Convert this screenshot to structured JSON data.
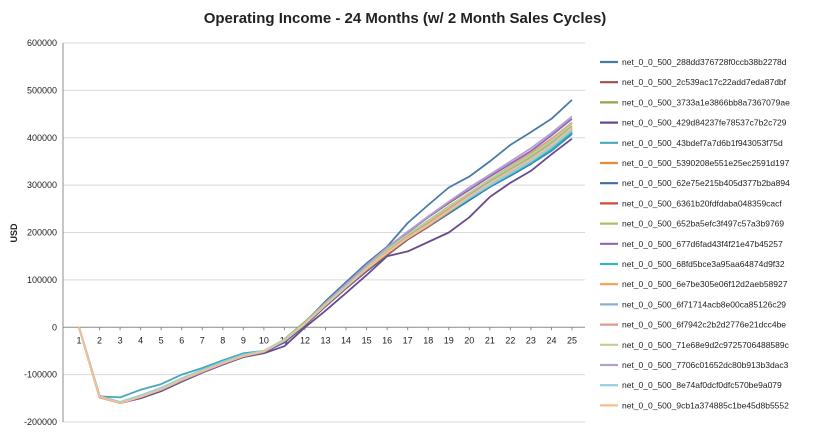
{
  "chart_data": {
    "type": "line",
    "title": "Operating Income - 24 Months (w/ 2 Month Sales Cycles)",
    "xlabel": "",
    "ylabel": "USD",
    "ylim": [
      -200000,
      600000
    ],
    "y_ticks": [
      600000,
      500000,
      400000,
      300000,
      200000,
      100000,
      0,
      -100000,
      -200000
    ],
    "y_tick_labels": [
      "600000",
      "500000",
      "400000",
      "300000",
      "200000",
      "100000",
      "0",
      "-100000",
      "-200000"
    ],
    "categories": [
      "1",
      "2",
      "3",
      "4",
      "5",
      "6",
      "7",
      "8",
      "9",
      "10",
      "11",
      "12",
      "13",
      "14",
      "15",
      "16",
      "17",
      "18",
      "19",
      "20",
      "21",
      "22",
      "23",
      "24",
      "25"
    ],
    "grid": true,
    "legend_position": "right",
    "series": [
      {
        "name": "net_0_0_500_288dd376728f0ccb38b2278d",
        "color": "#4a7ba6",
        "values": [
          0,
          -145000,
          -158000,
          -145000,
          -130000,
          -112000,
          -95000,
          -78000,
          -62000,
          -52000,
          -30000,
          10000,
          55000,
          95000,
          135000,
          170000,
          220000,
          258000,
          295000,
          318000,
          350000,
          385000,
          412000,
          440000,
          480000
        ]
      },
      {
        "name": "net_0_0_500_2c539ac17c22add7eda87dbf",
        "color": "#a64a4a",
        "values": [
          0,
          -148000,
          -160000,
          -148000,
          -132000,
          -112000,
          -94000,
          -76000,
          -62000,
          -50000,
          -28000,
          5000,
          45000,
          85000,
          122000,
          155000,
          188000,
          215000,
          245000,
          275000,
          300000,
          322000,
          345000,
          380000,
          415000
        ]
      },
      {
        "name": "net_0_0_500_3733a1e3866bb8a7367079ae",
        "color": "#8ca64a",
        "values": [
          0,
          -146000,
          -159000,
          -147000,
          -130000,
          -110000,
          -92000,
          -75000,
          -60000,
          -52000,
          -25000,
          12000,
          52000,
          90000,
          128000,
          162000,
          195000,
          225000,
          255000,
          283000,
          310000,
          335000,
          362000,
          395000,
          432000
        ]
      },
      {
        "name": "net_0_0_500_429d84237fe78537c7b2c729",
        "color": "#6a4a8c",
        "values": [
          0,
          -145000,
          -160000,
          -150000,
          -135000,
          -115000,
          -96000,
          -79000,
          -63000,
          -55000,
          -40000,
          0,
          35000,
          72000,
          110000,
          150000,
          160000,
          180000,
          200000,
          232000,
          275000,
          305000,
          330000,
          365000,
          398000
        ]
      },
      {
        "name": "net_0_0_500_43bdef7a7d6b1f943053f75d",
        "color": "#4aa6b8",
        "values": [
          0,
          -146000,
          -148000,
          -132000,
          -120000,
          -100000,
          -86000,
          -70000,
          -55000,
          -50000,
          -30000,
          6000,
          48000,
          88000,
          125000,
          158000,
          190000,
          215000,
          242000,
          270000,
          298000,
          320000,
          345000,
          372000,
          408000
        ]
      },
      {
        "name": "net_0_0_500_5390208e551e25ec2591d197",
        "color": "#e88a3a",
        "values": [
          0,
          -147000,
          -160000,
          -146000,
          -131000,
          -111000,
          -93000,
          -76000,
          -61000,
          -51000,
          -27000,
          8000,
          50000,
          88000,
          126000,
          160000,
          192000,
          218000,
          248000,
          276000,
          304000,
          330000,
          355000,
          385000,
          420000
        ]
      },
      {
        "name": "net_0_0_500_62e75e215b405d377b2ba894",
        "color": "#3a6ea6",
        "values": [
          0,
          -146000,
          -160000,
          -148000,
          -133000,
          -113000,
          -95000,
          -78000,
          -63000,
          -53000,
          -32000,
          4000,
          44000,
          82000,
          118000,
          152000,
          185000,
          212000,
          240000,
          268000,
          296000,
          320000,
          345000,
          375000,
          410000
        ]
      },
      {
        "name": "net_0_0_500_6361b20fdfdaba048359cacf",
        "color": "#d04a3a",
        "values": [
          0,
          -147000,
          -159000,
          -147000,
          -132000,
          -112000,
          -94000,
          -77000,
          -62000,
          -52000,
          -28000,
          6000,
          46000,
          84000,
          121000,
          154000,
          186000,
          212000,
          242000,
          272000,
          300000,
          325000,
          350000,
          380000,
          418000
        ]
      },
      {
        "name": "net_0_0_500_652ba5efc3f497c57a3b9769",
        "color": "#a6c46a",
        "values": [
          0,
          -146000,
          -158000,
          -145000,
          -129000,
          -109000,
          -91000,
          -74000,
          -59000,
          -51000,
          -26000,
          10000,
          50000,
          89000,
          127000,
          162000,
          195000,
          222000,
          252000,
          282000,
          310000,
          335000,
          360000,
          390000,
          425000
        ]
      },
      {
        "name": "net_0_0_500_677d6fad43f4f21e47b45257",
        "color": "#8a6ab4",
        "values": [
          0,
          -145000,
          -159000,
          -147000,
          -132000,
          -112000,
          -94000,
          -77000,
          -61000,
          -52000,
          -29000,
          8000,
          50000,
          90000,
          130000,
          168000,
          200000,
          232000,
          262000,
          290000,
          318000,
          345000,
          372000,
          405000,
          440000
        ]
      },
      {
        "name": "net_0_0_500_68fd5bce3a95aa64874d9f32",
        "color": "#3ab4c8",
        "values": [
          0,
          -146000,
          -158000,
          -144000,
          -128000,
          -108000,
          -90000,
          -73000,
          -58000,
          -50000,
          -27000,
          8000,
          48000,
          86000,
          123000,
          156000,
          188000,
          214000,
          243000,
          271000,
          298000,
          322000,
          347000,
          376000,
          412000
        ]
      },
      {
        "name": "net_0_0_500_6e7be305e06f12d2aeb58927",
        "color": "#f0a050",
        "values": [
          0,
          -147000,
          -160000,
          -147000,
          -131000,
          -111000,
          -93000,
          -76000,
          -61000,
          -51000,
          -28000,
          7000,
          47000,
          85000,
          122000,
          156000,
          188000,
          215000,
          245000,
          275000,
          302000,
          328000,
          352000,
          382000,
          418000
        ]
      },
      {
        "name": "net_0_0_500_6f71714acb8e00ca85126c29",
        "color": "#8aaed0",
        "values": [
          0,
          -146000,
          -159000,
          -146000,
          -130000,
          -110000,
          -92000,
          -75000,
          -60000,
          -51000,
          -27000,
          9000,
          49000,
          87000,
          125000,
          159000,
          192000,
          219000,
          249000,
          279000,
          306000,
          332000,
          357000,
          387000,
          422000
        ]
      },
      {
        "name": "net_0_0_500_6f7942c2b2d2776e21dcc4be",
        "color": "#e09a90",
        "values": [
          0,
          -147000,
          -160000,
          -147000,
          -132000,
          -112000,
          -94000,
          -77000,
          -61000,
          -52000,
          -28000,
          7000,
          48000,
          86000,
          124000,
          158000,
          190000,
          218000,
          250000,
          282000,
          312000,
          340000,
          368000,
          398000,
          432000
        ]
      },
      {
        "name": "net_0_0_500_71e68e9d2c9725706488589c",
        "color": "#bcd08a",
        "values": [
          0,
          -146000,
          -158000,
          -145000,
          -129000,
          -109000,
          -91000,
          -74000,
          -59000,
          -50000,
          -26000,
          10000,
          51000,
          90000,
          128000,
          163000,
          196000,
          224000,
          254000,
          284000,
          312000,
          338000,
          364000,
          394000,
          430000
        ]
      },
      {
        "name": "net_0_0_500_7706c01652dc80b913b3dac3",
        "color": "#b4a0d0",
        "values": [
          0,
          -145000,
          -159000,
          -147000,
          -131000,
          -111000,
          -93000,
          -76000,
          -61000,
          -51000,
          -28000,
          9000,
          51000,
          91000,
          131000,
          168000,
          202000,
          234000,
          265000,
          295000,
          322000,
          350000,
          378000,
          410000,
          445000
        ]
      },
      {
        "name": "net_0_0_500_8e74af0dcf0dfc570be9a079",
        "color": "#90d0e0",
        "values": [
          0,
          -146000,
          -158000,
          -144000,
          -128000,
          -108000,
          -90000,
          -73000,
          -58000,
          -50000,
          -26000,
          9000,
          49000,
          87000,
          124000,
          157000,
          189000,
          216000,
          245000,
          273000,
          300000,
          325000,
          350000,
          380000,
          416000
        ]
      },
      {
        "name": "net_0_0_500_9cb1a374885c1be45d8b5552",
        "color": "#f4c090",
        "values": [
          0,
          -147000,
          -160000,
          -147000,
          -131000,
          -111000,
          -93000,
          -76000,
          -61000,
          -51000,
          -28000,
          7000,
          47000,
          85000,
          123000,
          157000,
          189000,
          216000,
          246000,
          276000,
          304000,
          330000,
          355000,
          385000,
          421000
        ]
      }
    ]
  }
}
